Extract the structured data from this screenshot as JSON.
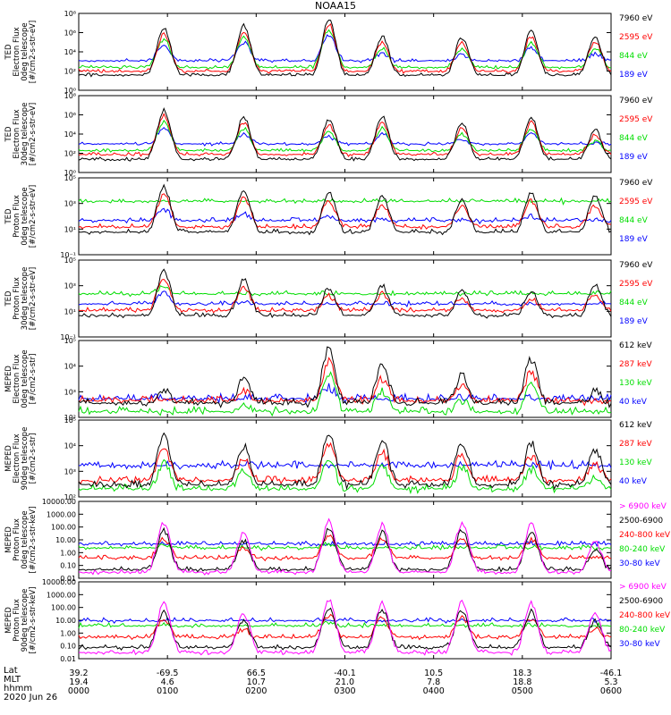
{
  "figure": {
    "title": "NOAA15"
  },
  "chart_data": [
    {
      "type": "line",
      "instrument": "TED",
      "ylabel": [
        "TED",
        "Electron Flux",
        "0deg telescope",
        "[#/cm2-s-str-eV]"
      ],
      "y_ticks": [
        "10⁰",
        "10²",
        "10⁴",
        "10⁶",
        "10⁸"
      ],
      "ylim_log10": [
        0,
        8
      ],
      "series": [
        {
          "name": "7960 eV",
          "color": "#000000",
          "base": 1.4
        },
        {
          "name": "2595 eV",
          "color": "#ff0000",
          "base": 1.8
        },
        {
          "name": "844 eV",
          "color": "#00dd00",
          "base": 2.2
        },
        {
          "name": "189 eV",
          "color": "#0000ff",
          "base": 2.9
        }
      ],
      "peaks_log10": [
        6.5,
        6.8,
        7.5,
        5.6,
        5.5,
        6.2,
        5.6
      ]
    },
    {
      "type": "line",
      "instrument": "TED",
      "ylabel": [
        "TED",
        "Electron Flux",
        "30deg telescope",
        "[#/cm2-s-str-eV]"
      ],
      "y_ticks": [
        "10⁰",
        "10²",
        "10⁴",
        "10⁶",
        "10⁸"
      ],
      "ylim_log10": [
        0,
        8
      ],
      "series": [
        {
          "name": "7960 eV",
          "color": "#000000",
          "base": 1.2
        },
        {
          "name": "2595 eV",
          "color": "#ff0000",
          "base": 1.7
        },
        {
          "name": "844 eV",
          "color": "#00dd00",
          "base": 2.1
        },
        {
          "name": "189 eV",
          "color": "#0000ff",
          "base": 2.8
        }
      ],
      "peaks_log10": [
        6.5,
        5.8,
        5.5,
        5.8,
        5.2,
        5.8,
        4.5
      ]
    },
    {
      "type": "line",
      "instrument": "TED",
      "ylabel": [
        "TED",
        "Proton Flux",
        "0deg telescope",
        "[#/cm2-s-str-eV]"
      ],
      "y_ticks": [
        "10⁻¹",
        "10¹",
        "10³",
        "10⁵"
      ],
      "ylim_log10": [
        -1,
        5
      ],
      "series": [
        {
          "name": "7960 eV",
          "color": "#000000",
          "base": 0.6
        },
        {
          "name": "2595 eV",
          "color": "#ff0000",
          "base": 1.0
        },
        {
          "name": "844 eV",
          "color": "#00dd00",
          "base": 3.0
        },
        {
          "name": "189 eV",
          "color": "#0000ff",
          "base": 1.5
        }
      ],
      "peaks_log10": [
        4.3,
        4.0,
        3.8,
        3.5,
        3.3,
        3.8,
        3.5
      ]
    },
    {
      "type": "line",
      "instrument": "TED",
      "ylabel": [
        "TED",
        "Proton Flux",
        "30deg telescope",
        "[#/cm2-s-str-eV]"
      ],
      "y_ticks": [
        "10⁻¹",
        "10¹",
        "10³",
        "10⁵"
      ],
      "ylim_log10": [
        -1,
        5
      ],
      "series": [
        {
          "name": "7960 eV",
          "color": "#000000",
          "base": 0.5
        },
        {
          "name": "2595 eV",
          "color": "#ff0000",
          "base": 0.9
        },
        {
          "name": "844 eV",
          "color": "#00dd00",
          "base": 2.2
        },
        {
          "name": "189 eV",
          "color": "#0000ff",
          "base": 1.4
        }
      ],
      "peaks_log10": [
        4.2,
        3.5,
        2.8,
        3.0,
        2.6,
        2.6,
        3.0
      ]
    },
    {
      "type": "line",
      "instrument": "MEPED",
      "ylabel": [
        "MEPED",
        "Electron Flux",
        "0deg telescope",
        "[#/cm2-s-str]"
      ],
      "y_ticks": [
        "10²",
        "10³",
        "10⁴",
        "10⁵"
      ],
      "ylim_log10": [
        2,
        5.6
      ],
      "series": [
        {
          "name": "612 keV",
          "color": "#000000",
          "base": 2.5
        },
        {
          "name": "287 keV",
          "color": "#ff0000",
          "base": 2.6
        },
        {
          "name": "130 keV",
          "color": "#00dd00",
          "base": 2.1
        },
        {
          "name": "40 keV",
          "color": "#0000ff",
          "base": 2.7
        }
      ],
      "peaks_log10": [
        3.3,
        3.8,
        5.2,
        4.4,
        4.0,
        4.7,
        3.2
      ]
    },
    {
      "type": "line",
      "instrument": "MEPED",
      "ylabel": [
        "MEPED",
        "Electron Flux",
        "90deg telescope",
        "[#/cm2-s-str]"
      ],
      "y_ticks": [
        "10²",
        "10³",
        "10⁴",
        "10⁵"
      ],
      "ylim_log10": [
        2,
        5.6
      ],
      "series": [
        {
          "name": "612 keV",
          "color": "#000000",
          "base": 2.4
        },
        {
          "name": "287 keV",
          "color": "#ff0000",
          "base": 2.6
        },
        {
          "name": "130 keV",
          "color": "#00dd00",
          "base": 2.2
        },
        {
          "name": "40 keV",
          "color": "#0000ff",
          "base": 3.3
        }
      ],
      "peaks_log10": [
        4.8,
        4.4,
        5.0,
        4.7,
        4.6,
        4.5,
        4.2
      ]
    },
    {
      "type": "line",
      "instrument": "MEPED",
      "ylabel": [
        "MEPED",
        "Proton Flux",
        "0deg telescope",
        "[#/cm2-s-str-keV]"
      ],
      "y_ticks": [
        "0.01",
        "0.10",
        "1.00",
        "10.00",
        "100.00",
        "1000.00",
        "10000.00"
      ],
      "ylim_log10": [
        -2,
        4
      ],
      "series": [
        {
          "name": "> 6900 keV",
          "color": "#ff00ff",
          "base": -1.7
        },
        {
          "name": "2500-6900",
          "color": "#000000",
          "base": -1.5
        },
        {
          "name": "240-800 keV",
          "color": "#ff0000",
          "base": -0.6
        },
        {
          "name": "80-240 keV",
          "color": "#00dd00",
          "base": 0.2
        },
        {
          "name": "30-80 keV",
          "color": "#0000ff",
          "base": 0.5
        }
      ],
      "peaks_log10": [
        2.3,
        1.5,
        2.5,
        2.2,
        2.3,
        2.2,
        0.8
      ]
    },
    {
      "type": "line",
      "instrument": "MEPED",
      "ylabel": [
        "MEPED",
        "Proton Flux",
        "90deg telescope",
        "[#/cm2-s-str-keV]"
      ],
      "y_ticks": [
        "0.01",
        "0.10",
        "1.00",
        "10.00",
        "100.00",
        "1000.00",
        "10000.00"
      ],
      "ylim_log10": [
        -2,
        4
      ],
      "series": [
        {
          "name": "> 6900 keV",
          "color": "#ff00ff",
          "base": -1.7
        },
        {
          "name": "2500-6900",
          "color": "#000000",
          "base": -1.3
        },
        {
          "name": "240-800 keV",
          "color": "#ff0000",
          "base": -0.5
        },
        {
          "name": "80-240 keV",
          "color": "#00dd00",
          "base": 0.4
        },
        {
          "name": "30-80 keV",
          "color": "#0000ff",
          "base": 0.8
        }
      ],
      "peaks_log10": [
        2.3,
        1.5,
        2.6,
        2.4,
        2.4,
        2.3,
        1.5
      ]
    }
  ],
  "x_axis": {
    "rows": [
      "Lat",
      "MLT",
      "hhmm",
      "2020 Jun 26"
    ],
    "lat": [
      "39.2",
      "-69.5",
      "66.5",
      "-40.1",
      "10.5",
      "18.3",
      "-46.1"
    ],
    "mlt": [
      "19.4",
      "4.6",
      "10.7",
      "21.0",
      "7.8",
      "18.8",
      "5.3"
    ],
    "hhmm": [
      "0000",
      "0100",
      "0200",
      "0300",
      "0400",
      "0500",
      "0600"
    ]
  }
}
